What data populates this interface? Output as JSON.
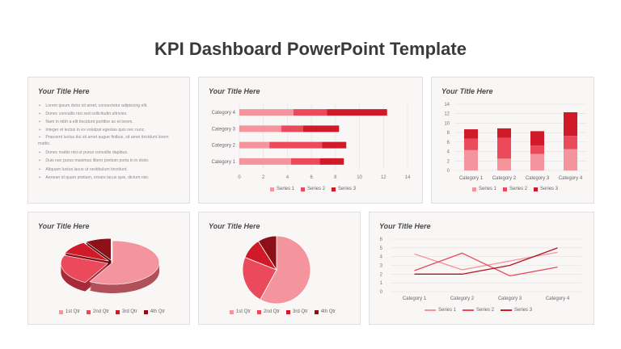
{
  "page_title": "KPI Dashboard PowerPoint Template",
  "colors": {
    "s1": "#f4949d",
    "s2": "#ea4a5c",
    "s3": "#d01a2a",
    "s4": "#8c1018"
  },
  "cards": {
    "text": {
      "title": "Your Title Here",
      "bullets": [
        "Lorem ipsum dolor sit amet, consectetur adipiscing elit.",
        "Donec convallis nisi sed sollicitudin ultricies.",
        "Nam in nibh a elit tincidunt porttitor ac et lorem.",
        "Integer et lectus in ex volutpat egestas quis nec nunc.",
        "Praesent luctus dui sit amet augue finibus, sit amet tincidunt lorem mattis.",
        "Donec mattis nisi ut purus convallis dapibus.",
        "Duis nec purus maximus libero pretium porta in in dolor.",
        "Aliquam luctus lacus ut vestibulum tincidunt.",
        "Aenean id quam pretium, ornare lacus quis, dictum nisi."
      ]
    },
    "hbar": {
      "title": "Your Title Here"
    },
    "vbar": {
      "title": "Your Title Here"
    },
    "pie3d": {
      "title": "Your Title Here"
    },
    "pie": {
      "title": "Your Title Here"
    },
    "line": {
      "title": "Your Title Here"
    }
  },
  "chart_data": [
    {
      "type": "bar",
      "orientation": "horizontal",
      "stacked": true,
      "categories": [
        "Category 1",
        "Category 2",
        "Category 3",
        "Category 4"
      ],
      "series": [
        {
          "name": "Series 1",
          "values": [
            4.3,
            2.5,
            3.5,
            4.5
          ]
        },
        {
          "name": "Series 2",
          "values": [
            2.4,
            4.4,
            1.8,
            2.8
          ]
        },
        {
          "name": "Series 3",
          "values": [
            2.0,
            2.0,
            3.0,
            5.0
          ]
        }
      ],
      "xlim": [
        0,
        14
      ],
      "xticks": [
        0,
        2,
        4,
        6,
        8,
        10,
        12,
        14
      ],
      "legend": "bottom",
      "grid": true
    },
    {
      "type": "bar",
      "orientation": "vertical",
      "stacked": true,
      "categories": [
        "Category 1",
        "Category 2",
        "Category 3",
        "Category 4"
      ],
      "series": [
        {
          "name": "Series 1",
          "values": [
            4.3,
            2.5,
            3.5,
            4.5
          ]
        },
        {
          "name": "Series 2",
          "values": [
            2.4,
            4.4,
            1.8,
            2.8
          ]
        },
        {
          "name": "Series 3",
          "values": [
            2.0,
            2.0,
            3.0,
            5.0
          ]
        }
      ],
      "ylim": [
        0,
        14
      ],
      "yticks": [
        0,
        2,
        4,
        6,
        8,
        10,
        12,
        14
      ],
      "legend": "bottom",
      "grid": true
    },
    {
      "type": "pie",
      "style": "3d",
      "labels": [
        "1st Qtr",
        "2nd Qtr",
        "3rd Qtr",
        "4th Qtr"
      ],
      "values": [
        58,
        23,
        10,
        9
      ],
      "legend": "bottom"
    },
    {
      "type": "pie",
      "labels": [
        "1st Qtr",
        "2nd Qtr",
        "3rd Qtr",
        "4th Qtr"
      ],
      "values": [
        58,
        23,
        10,
        9
      ],
      "legend": "bottom"
    },
    {
      "type": "line",
      "categories": [
        "Category 1",
        "Category 2",
        "Category 3",
        "Category 4"
      ],
      "series": [
        {
          "name": "Series 1",
          "values": [
            4.3,
            2.5,
            3.5,
            4.5
          ]
        },
        {
          "name": "Series 2",
          "values": [
            2.4,
            4.4,
            1.8,
            2.8
          ]
        },
        {
          "name": "Series 3",
          "values": [
            2.0,
            2.0,
            3.0,
            5.0
          ]
        }
      ],
      "ylim": [
        0,
        6
      ],
      "yticks": [
        0,
        1,
        2,
        3,
        4,
        5,
        6
      ],
      "legend": "bottom",
      "grid": true
    }
  ]
}
